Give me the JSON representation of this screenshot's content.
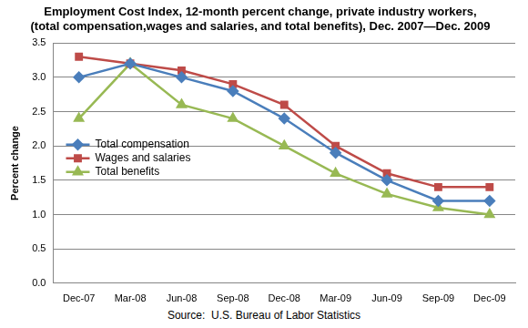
{
  "chart_data": {
    "type": "line",
    "title": [
      "Employment Cost Index, 12-month percent change, private industry workers,",
      "(total compensation,wages and salaries, and total benefits), Dec. 2007—Dec. 2009"
    ],
    "y_label": "Percent change",
    "annotation": "Source:  U.S. Bureau of Labor Statistics",
    "categories": [
      "Dec-07",
      "Mar-08",
      "Jun-08",
      "Sep-08",
      "Dec-08",
      "Mar-09",
      "Jun-09",
      "Sep-09",
      "Dec-09"
    ],
    "series": [
      {
        "name": "Total compensation",
        "color": "#4a7ebb",
        "marker": "diamond",
        "values": [
          3.0,
          3.2,
          3.0,
          2.8,
          2.4,
          1.9,
          1.5,
          1.2,
          1.2
        ]
      },
      {
        "name": "Wages and salaries",
        "color": "#be4b48",
        "marker": "square",
        "values": [
          3.3,
          3.2,
          3.1,
          2.9,
          2.6,
          2.0,
          1.6,
          1.4,
          1.4
        ]
      },
      {
        "name": "Total benefits",
        "color": "#98b954",
        "marker": "triangle",
        "values": [
          2.4,
          3.2,
          2.6,
          2.4,
          2.0,
          1.6,
          1.3,
          1.1,
          1.0
        ]
      }
    ],
    "ylim": [
      0,
      3.5
    ],
    "yticks": [
      {
        "value": 0,
        "label": "0.0"
      },
      {
        "value": 0.5,
        "label": "0.5"
      },
      {
        "value": 1,
        "label": "1.0"
      },
      {
        "value": 1.5,
        "label": "1.5"
      },
      {
        "value": 2,
        "label": "2.0"
      },
      {
        "value": 2.5,
        "label": "2.5"
      },
      {
        "value": 3,
        "label": "3.0"
      },
      {
        "value": 3.5,
        "label": "3.5"
      }
    ],
    "grid": true,
    "legend": "left"
  }
}
